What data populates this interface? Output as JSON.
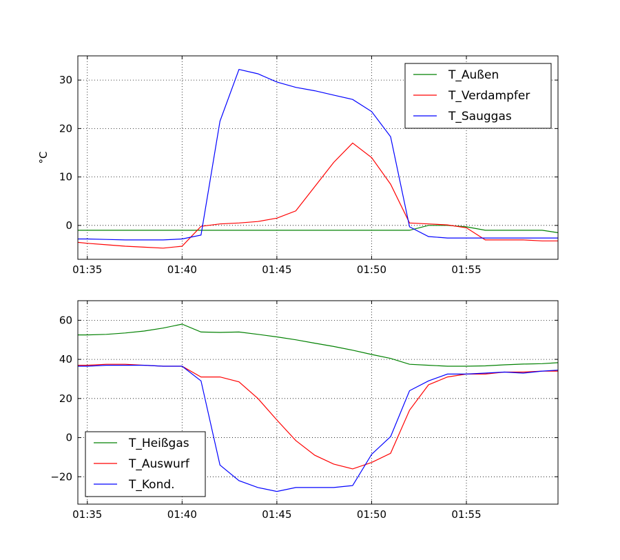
{
  "chart_data": [
    {
      "type": "line",
      "ylabel": "°C",
      "xlim": [
        "01:34:30",
        "01:59:50"
      ],
      "ylim": [
        -7,
        35
      ],
      "xticks": [
        "01:35",
        "01:40",
        "01:45",
        "01:50",
        "01:55"
      ],
      "yticks": [
        0,
        10,
        20,
        30
      ],
      "grid": true,
      "legend": "top-right",
      "x": [
        "01:34:30",
        "01:35",
        "01:36",
        "01:37",
        "01:38",
        "01:39",
        "01:40",
        "01:41",
        "01:42",
        "01:43",
        "01:44",
        "01:45",
        "01:46",
        "01:47",
        "01:48",
        "01:49",
        "01:50",
        "01:51",
        "01:52",
        "01:53",
        "01:54",
        "01:55",
        "01:56",
        "01:57",
        "01:58",
        "01:59",
        "01:59:50"
      ],
      "series": [
        {
          "name": "T_Außen",
          "color": "#008000",
          "values": [
            -1.0,
            -1.0,
            -1.0,
            -1.0,
            -1.0,
            -1.0,
            -1.0,
            -1.0,
            -1.0,
            -1.0,
            -1.0,
            -1.0,
            -1.0,
            -1.0,
            -1.0,
            -1.0,
            -1.0,
            -1.0,
            -1.0,
            0.0,
            0.0,
            -0.3,
            -1.0,
            -1.0,
            -1.0,
            -1.0,
            -1.5
          ]
        },
        {
          "name": "T_Verdampfer",
          "color": "#ff0000",
          "values": [
            -3.5,
            -3.7,
            -4.0,
            -4.3,
            -4.5,
            -4.7,
            -4.3,
            -0.2,
            0.3,
            0.5,
            0.8,
            1.5,
            3.0,
            8.0,
            13.0,
            17.0,
            14.0,
            8.5,
            0.5,
            0.3,
            0.1,
            -0.5,
            -3.0,
            -3.0,
            -3.0,
            -3.2,
            -3.2
          ]
        },
        {
          "name": "T_Sauggas",
          "color": "#0000ff",
          "values": [
            -2.8,
            -2.8,
            -2.9,
            -3.0,
            -3.0,
            -3.0,
            -2.8,
            -2.0,
            21.5,
            32.2,
            31.3,
            29.6,
            28.5,
            27.8,
            26.9,
            26.0,
            23.5,
            18.3,
            -0.3,
            -2.3,
            -2.6,
            -2.6,
            -2.6,
            -2.6,
            -2.6,
            -2.6,
            -2.6
          ]
        }
      ]
    },
    {
      "type": "line",
      "ylabel": "",
      "xlim": [
        "01:34:30",
        "01:59:50"
      ],
      "ylim": [
        -34,
        70
      ],
      "xticks": [
        "01:35",
        "01:40",
        "01:45",
        "01:50",
        "01:55"
      ],
      "yticks": [
        60,
        40,
        20,
        0,
        -20
      ],
      "grid": true,
      "legend": "bottom-left",
      "x": [
        "01:34:30",
        "01:35",
        "01:36",
        "01:37",
        "01:38",
        "01:39",
        "01:40",
        "01:41",
        "01:42",
        "01:43",
        "01:44",
        "01:45",
        "01:46",
        "01:47",
        "01:48",
        "01:49",
        "01:50",
        "01:51",
        "01:52",
        "01:53",
        "01:54",
        "01:55",
        "01:56",
        "01:57",
        "01:58",
        "01:59",
        "01:59:50"
      ],
      "series": [
        {
          "name": "T_Heißgas",
          "color": "#008000",
          "values": [
            52.5,
            52.5,
            52.8,
            53.5,
            54.5,
            56.0,
            58.0,
            54.0,
            53.8,
            54.0,
            52.8,
            51.5,
            50.0,
            48.3,
            46.6,
            44.7,
            42.5,
            40.5,
            37.5,
            37.0,
            36.5,
            36.5,
            36.7,
            37.2,
            37.6,
            37.8,
            38.3
          ]
        },
        {
          "name": "T_Auswurf",
          "color": "#ff0000",
          "values": [
            37.0,
            37.0,
            37.5,
            37.5,
            37.0,
            36.5,
            36.5,
            31.0,
            31.0,
            28.5,
            20.0,
            9.0,
            -1.5,
            -9.0,
            -13.5,
            -16.0,
            -12.7,
            -8.0,
            14.0,
            27.0,
            31.0,
            32.5,
            32.5,
            33.5,
            33.5,
            34.0,
            34.0
          ]
        },
        {
          "name": "T_Kond.",
          "color": "#0000ff",
          "values": [
            36.5,
            36.5,
            37.0,
            37.0,
            37.0,
            36.5,
            36.5,
            29.0,
            -14.0,
            -22.0,
            -25.5,
            -27.5,
            -25.5,
            -25.5,
            -25.5,
            -24.5,
            -8.5,
            0.5,
            24.0,
            29.0,
            32.5,
            32.5,
            33.0,
            33.5,
            33.0,
            34.0,
            34.5
          ]
        }
      ]
    }
  ]
}
